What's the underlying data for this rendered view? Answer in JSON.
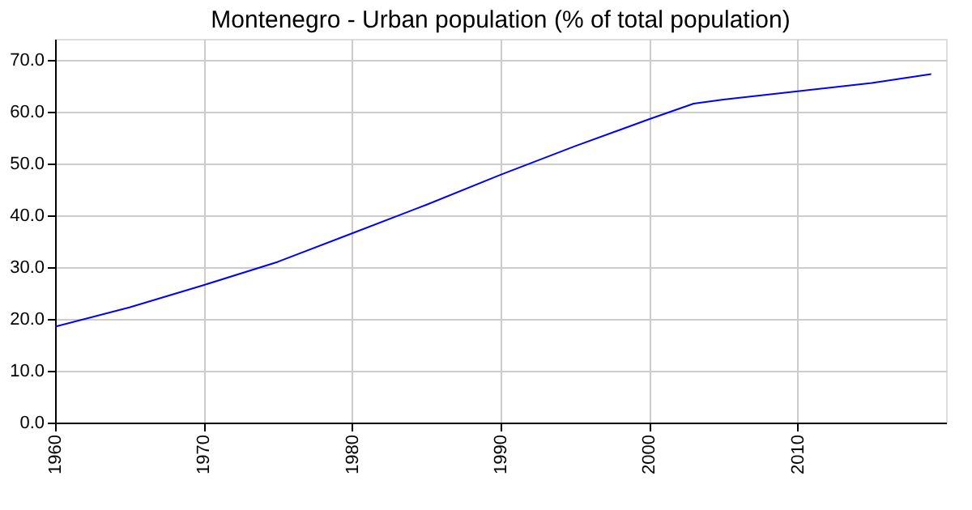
{
  "chart_data": {
    "type": "line",
    "title": "Montenegro - Urban population (% of total population)",
    "x": [
      1960,
      1965,
      1970,
      1975,
      1980,
      1985,
      1990,
      1995,
      2000,
      2003,
      2005,
      2010,
      2015,
      2019
    ],
    "series": [
      {
        "color": "#0000ff",
        "values": [
          18.5,
          22.2,
          26.5,
          31.0,
          36.5,
          42.0,
          47.8,
          53.3,
          58.5,
          61.5,
          62.3,
          63.9,
          65.5,
          67.2
        ]
      }
    ],
    "xlim": [
      1960,
      2020
    ],
    "xticks": [
      1960,
      1970,
      1980,
      1990,
      2000,
      2010
    ],
    "ylim": [
      0,
      74
    ],
    "yticks": [
      {
        "value": 0,
        "label": "0.0"
      },
      {
        "value": 10,
        "label": "10.0"
      },
      {
        "value": 20,
        "label": "20.0"
      },
      {
        "value": 30,
        "label": "30.0"
      },
      {
        "value": 40,
        "label": "40.0"
      },
      {
        "value": 50,
        "label": "50.0"
      },
      {
        "value": 60,
        "label": "60.0"
      },
      {
        "value": 70,
        "label": "70.0"
      }
    ],
    "grid": true,
    "legend": false,
    "marker": "none",
    "line_style": "solid"
  }
}
